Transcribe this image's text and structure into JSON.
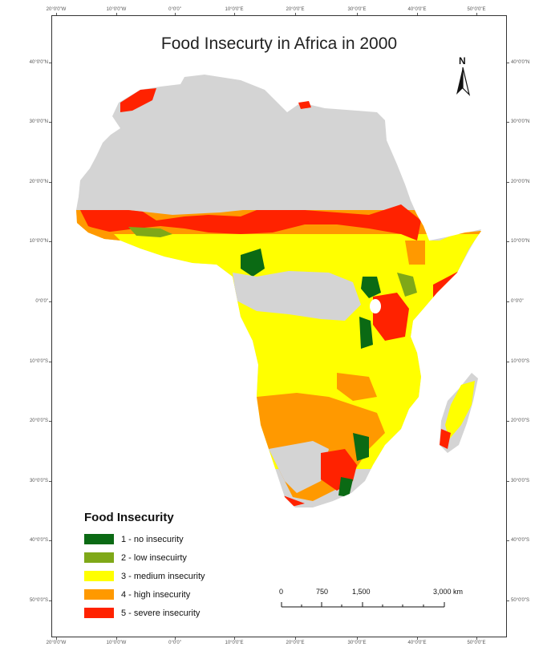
{
  "map": {
    "title": "Food Insecurty in Africa in 2000",
    "north_label": "N",
    "top_ticks": [
      "20°0'0\"W",
      "10°0'0\"W",
      "0°0'0\"",
      "10°0'0\"E",
      "20°0'0\"E",
      "30°0'0\"E",
      "40°0'0\"E",
      "50°0'0\"E"
    ],
    "bottom_ticks": [
      "20°0'0\"W",
      "10°0'0\"W",
      "0°0'0\"",
      "10°0'0\"E",
      "20°0'0\"E",
      "30°0'0\"E",
      "40°0'0\"E",
      "50°0'0\"E"
    ],
    "left_ticks": [
      "40°0'0\"N",
      "30°0'0\"N",
      "20°0'0\"N",
      "10°0'0\"N",
      "0°0'0\"",
      "10°0'0\"S",
      "20°0'0\"S",
      "30°0'0\"S",
      "40°0'0\"S",
      "50°0'0\"S"
    ],
    "right_ticks": [
      "40°0'0\"N",
      "30°0'0\"N",
      "20°0'0\"N",
      "10°0'0\"N",
      "0°0'0\"",
      "10°0'0\"S",
      "20°0'0\"S",
      "30°0'0\"S",
      "40°0'0\"S",
      "50°0'0\"S"
    ]
  },
  "legend": {
    "title": "Food Insecurity",
    "items": [
      {
        "label": "1 - no insecurity",
        "color": "#0b6a14"
      },
      {
        "label": "2 - low insecuirty",
        "color": "#7fa818"
      },
      {
        "label": "3 - medium insecurity",
        "color": "#ffff00"
      },
      {
        "label": "4 - high insecurity",
        "color": "#ff9900"
      },
      {
        "label": "5 - severe insecurity",
        "color": "#ff2200"
      }
    ]
  },
  "scale": {
    "labels": [
      "0",
      "750",
      "1,500",
      "3,000 km"
    ]
  },
  "colors": {
    "land": "#d4d4d4",
    "frame": "#333333"
  }
}
